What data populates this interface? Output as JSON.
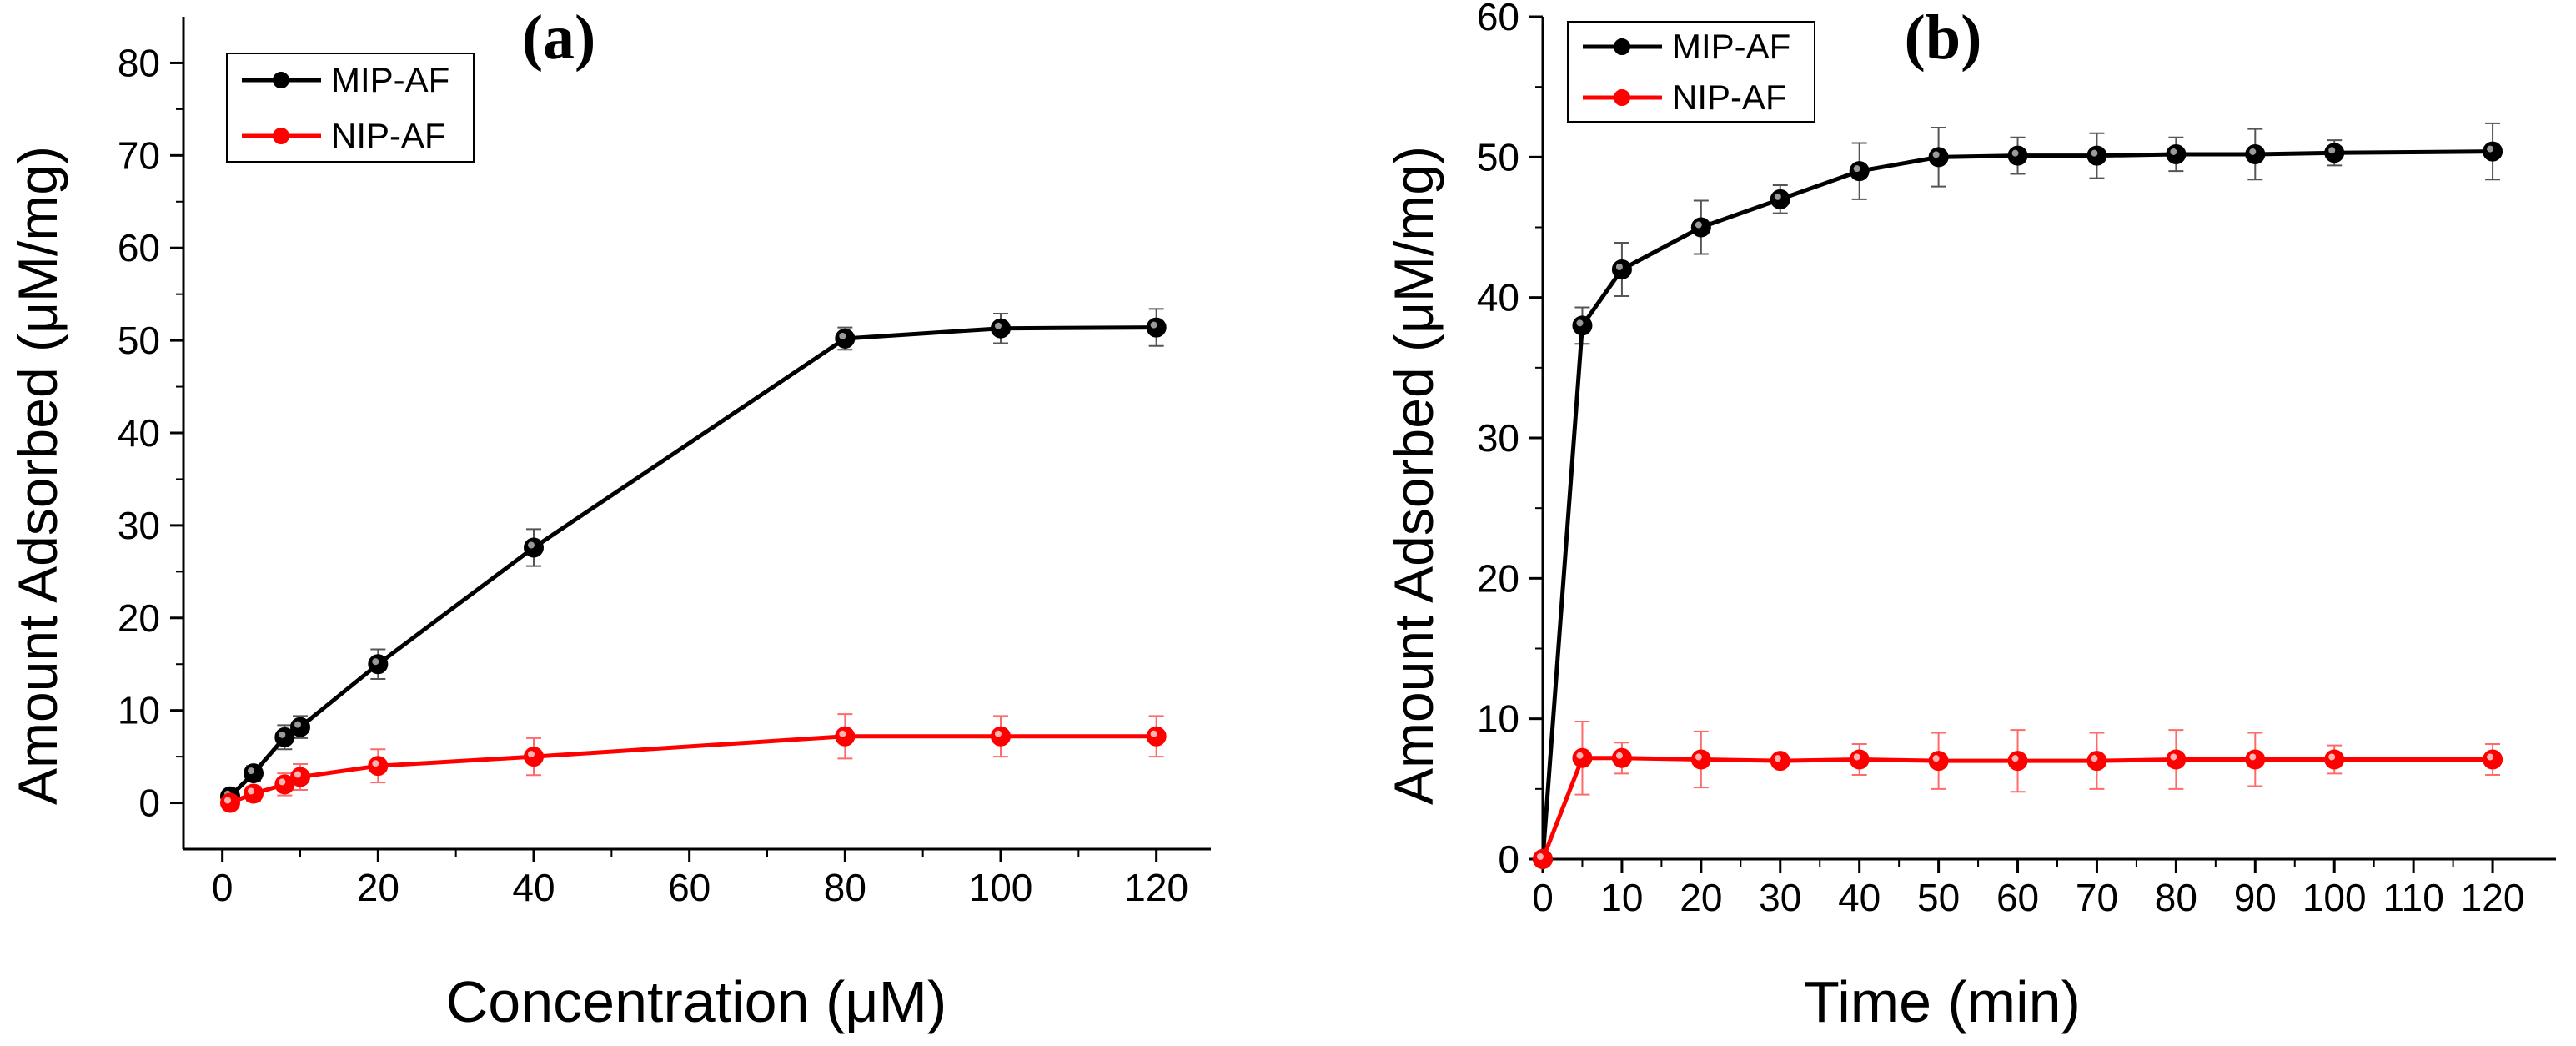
{
  "chart_data": [
    {
      "type": "line",
      "panel_label": "(a)",
      "xlabel": "Concentration (μM)",
      "ylabel": "Amount Adsorbed (μM/mg)",
      "xlim": [
        -5,
        127
      ],
      "ylim": [
        -5,
        85
      ],
      "xticks": [
        "0",
        "20",
        "40",
        "60",
        "80",
        "100",
        "120"
      ],
      "yticks": [
        "0",
        "10",
        "20",
        "30",
        "40",
        "50",
        "60",
        "70",
        "80"
      ],
      "legend_position": "top-left",
      "grid": false,
      "series": [
        {
          "name": "MIP-AF",
          "color": "#000000",
          "x": [
            1,
            4,
            8,
            10,
            20,
            40,
            80,
            100,
            120
          ],
          "values": [
            0.7,
            3.2,
            7.1,
            8.2,
            15.0,
            27.6,
            50.2,
            51.3,
            51.4
          ],
          "errors": [
            0.5,
            0.8,
            1.3,
            1.2,
            1.6,
            2.0,
            1.2,
            1.6,
            2.0
          ]
        },
        {
          "name": "NIP-AF",
          "color": "#ff0000",
          "x": [
            1,
            4,
            8,
            10,
            20,
            40,
            80,
            100,
            120
          ],
          "values": [
            0.0,
            1.0,
            2.0,
            2.8,
            4.0,
            5.0,
            7.2,
            7.2,
            7.2
          ],
          "errors": [
            0.6,
            0.8,
            1.2,
            1.4,
            1.8,
            2.0,
            2.4,
            2.2,
            2.2
          ]
        }
      ]
    },
    {
      "type": "line",
      "panel_label": "(b)",
      "xlabel": "Time (min)",
      "ylabel": "Amount Adsorbed (μM/mg)",
      "xlim": [
        0,
        128
      ],
      "ylim": [
        0,
        60
      ],
      "xticks": [
        "0",
        "10",
        "20",
        "30",
        "40",
        "50",
        "60",
        "70",
        "80",
        "90",
        "100",
        "110",
        "120"
      ],
      "yticks": [
        "0",
        "10",
        "20",
        "30",
        "40",
        "50",
        "60"
      ],
      "legend_position": "top-left",
      "grid": false,
      "series": [
        {
          "name": "MIP-AF",
          "color": "#000000",
          "x": [
            0,
            5,
            10,
            20,
            30,
            40,
            50,
            60,
            70,
            80,
            90,
            100,
            120
          ],
          "values": [
            0,
            38,
            42,
            45,
            47,
            49,
            50,
            50.1,
            50.1,
            50.2,
            50.2,
            50.3,
            50.4
          ],
          "errors": [
            0,
            1.3,
            1.9,
            1.9,
            1.0,
            2.0,
            2.1,
            1.3,
            1.6,
            1.2,
            1.8,
            0.9,
            2.0
          ]
        },
        {
          "name": "NIP-AF",
          "color": "#ff0000",
          "x": [
            0,
            5,
            10,
            20,
            30,
            40,
            50,
            60,
            70,
            80,
            90,
            100,
            120
          ],
          "values": [
            0,
            7.2,
            7.2,
            7.1,
            7.0,
            7.1,
            7.0,
            7.0,
            7.0,
            7.1,
            7.1,
            7.1,
            7.1
          ],
          "errors": [
            0,
            2.6,
            1.1,
            2.0,
            0.4,
            1.1,
            2.0,
            2.2,
            2.0,
            2.1,
            1.9,
            1.0,
            1.1
          ]
        }
      ]
    }
  ]
}
